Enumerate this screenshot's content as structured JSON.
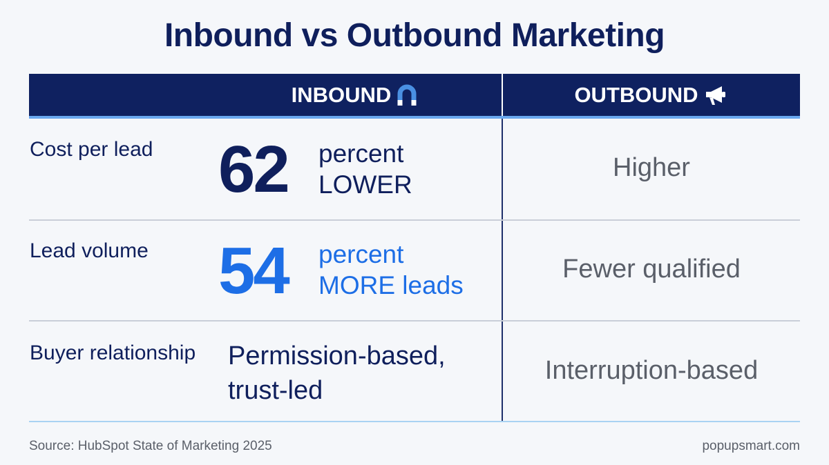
{
  "title": "Inbound vs Outbound Marketing",
  "columns": {
    "inbound": {
      "label": "INBOUND",
      "icon": "magnet-icon"
    },
    "outbound": {
      "label": "OUTBOUND",
      "icon": "megaphone-icon"
    }
  },
  "rows": [
    {
      "label": "Cost per lead",
      "inbound": {
        "number": "62",
        "line1": "percent",
        "line2": "LOWER"
      },
      "outbound": "Higher"
    },
    {
      "label": "Lead volume",
      "inbound": {
        "number": "54",
        "line1": "percent",
        "line2": "MORE leads"
      },
      "outbound": "Fewer qualified"
    },
    {
      "label": "Buyer relationship",
      "inbound": {
        "line1": "Permission-based,",
        "line2": "trust-led"
      },
      "outbound": "Interruption-based"
    }
  ],
  "footer": {
    "source": "Source: HubSpot State of Marketing 2025",
    "brand": "popupsmart.com"
  },
  "colors": {
    "navy": "#0f2160",
    "accent_blue": "#1d6ee6",
    "header_accent": "#6aa8ef",
    "muted_gray": "#5a5f69",
    "background": "#f5f7fa"
  }
}
